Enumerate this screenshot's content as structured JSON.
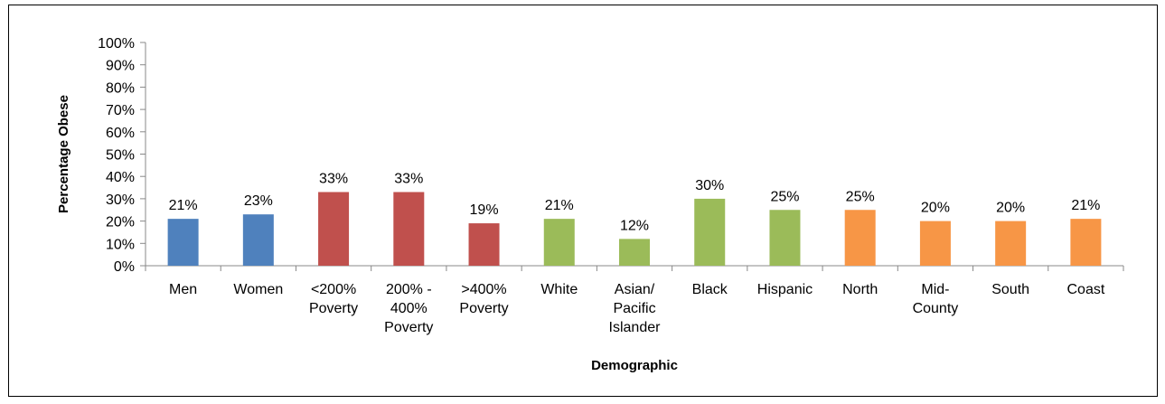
{
  "chart_data": {
    "type": "bar",
    "title": "",
    "xlabel": "Demographic",
    "ylabel": "Percentage Obese",
    "ylim": [
      0,
      100
    ],
    "yticks": [
      "0%",
      "10%",
      "20%",
      "30%",
      "40%",
      "50%",
      "60%",
      "70%",
      "80%",
      "90%",
      "100%"
    ],
    "grid": false,
    "legend": "none",
    "categories": [
      [
        "Men"
      ],
      [
        "Women"
      ],
      [
        "<200%",
        "Poverty"
      ],
      [
        "200% -",
        "400%",
        "Poverty"
      ],
      [
        ">400%",
        "Poverty"
      ],
      [
        "White"
      ],
      [
        "Asian/",
        "Pacific",
        "Islander"
      ],
      [
        "Black"
      ],
      [
        "Hispanic"
      ],
      [
        "North"
      ],
      [
        "Mid-",
        "County"
      ],
      [
        "South"
      ],
      [
        "Coast"
      ]
    ],
    "values": [
      21,
      23,
      33,
      33,
      19,
      21,
      12,
      30,
      25,
      25,
      20,
      20,
      21
    ],
    "data_labels": [
      "21%",
      "23%",
      "33%",
      "33%",
      "19%",
      "21%",
      "12%",
      "30%",
      "25%",
      "25%",
      "20%",
      "20%",
      "21%"
    ],
    "bar_colors": [
      "#4f81bd",
      "#4f81bd",
      "#c0504d",
      "#c0504d",
      "#c0504d",
      "#9bbb59",
      "#9bbb59",
      "#9bbb59",
      "#9bbb59",
      "#f79646",
      "#f79646",
      "#f79646",
      "#f79646"
    ]
  }
}
